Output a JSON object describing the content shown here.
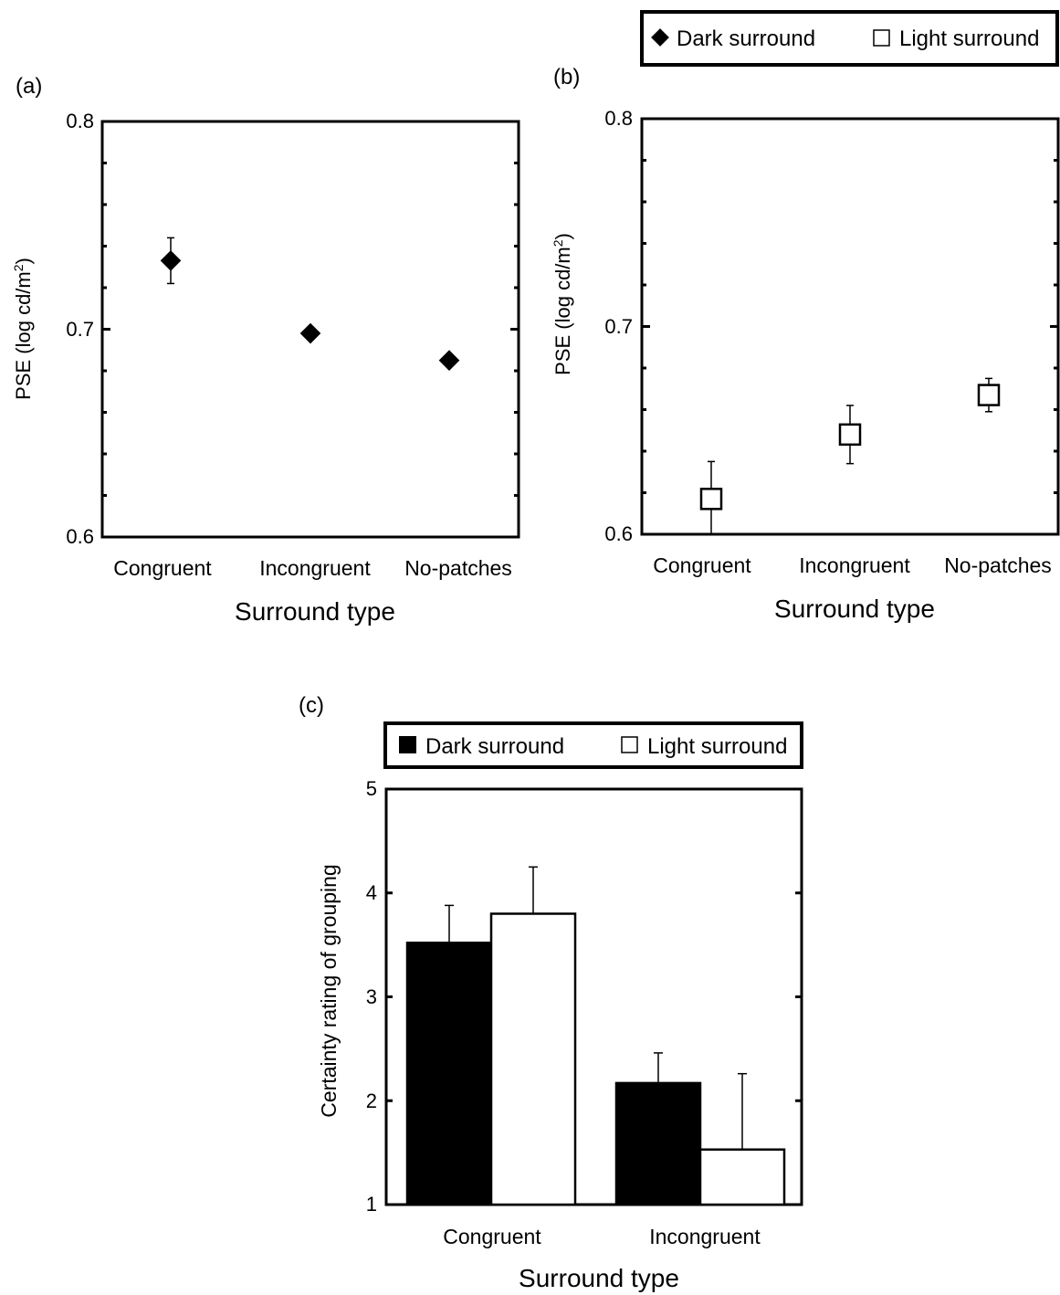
{
  "chart_data": [
    {
      "panel_label": "(a)",
      "type": "scatter",
      "categories": [
        "Congruent",
        "Incongruent",
        "No-patches"
      ],
      "series": [
        {
          "name": "Dark surround",
          "marker": "filled-diamond",
          "values": [
            0.733,
            0.698,
            0.685
          ],
          "errors": [
            0.011,
            0,
            0
          ]
        }
      ],
      "xlabel": "Surround type",
      "ylabel_main": "PSE (log cd/m",
      "ylabel_sup": "2",
      "ylabel_end": ")",
      "ylim": [
        0.6,
        0.8
      ],
      "ytick_labels": [
        "0.6",
        "0.7",
        "0.8"
      ],
      "legend": "none"
    },
    {
      "panel_label": "(b)",
      "type": "scatter",
      "categories": [
        "Congruent",
        "Incongruent",
        "No-patches"
      ],
      "series": [
        {
          "name": "Light surround",
          "marker": "open-square",
          "values": [
            0.617,
            0.648,
            0.667
          ],
          "errors": [
            0.018,
            0.014,
            0.008
          ]
        }
      ],
      "xlabel": "Surround type",
      "ylabel_main": "PSE (log cd/m",
      "ylabel_sup": "2",
      "ylabel_end": ")",
      "ylim": [
        0.6,
        0.8
      ],
      "ytick_labels": [
        "0.6",
        "0.7",
        "0.8"
      ],
      "legend_items": [
        "Dark surround",
        "Light surround"
      ],
      "legend": "above-right"
    },
    {
      "panel_label": "(c)",
      "type": "bar",
      "categories": [
        "Congruent",
        "Incongruent"
      ],
      "series": [
        {
          "name": "Dark surround",
          "color": "#000000",
          "values": [
            3.52,
            2.17
          ],
          "errors": [
            0.36,
            0.29
          ]
        },
        {
          "name": "Light surround",
          "color": "#ffffff",
          "values": [
            3.8,
            1.53
          ],
          "errors": [
            0.45,
            0.73
          ]
        }
      ],
      "xlabel": "Surround type",
      "ylabel": "Certainty rating of grouping",
      "ylim": [
        1,
        5
      ],
      "ytick_labels": [
        "1",
        "2",
        "3",
        "4",
        "5"
      ],
      "legend_items": [
        "Dark surround",
        "Light surround"
      ],
      "legend": "above"
    }
  ]
}
